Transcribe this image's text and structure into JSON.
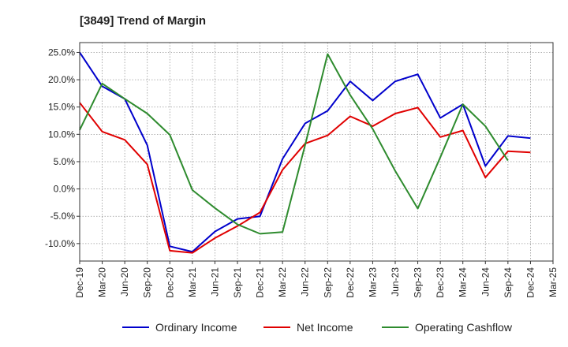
{
  "chart_data": {
    "type": "line",
    "title": "[3849]  Trend of Margin",
    "xlabel": "",
    "ylabel": "",
    "ylim": [
      -13.2,
      26.8
    ],
    "y_ticks": [
      "25.0%",
      "20.0%",
      "15.0%",
      "10.0%",
      "5.0%",
      "0.0%",
      "-5.0%",
      "-10.0%"
    ],
    "y_tick_values": [
      25,
      20,
      15,
      10,
      5,
      0,
      -5,
      -10
    ],
    "categories": [
      "Dec-19",
      "Mar-20",
      "Jun-20",
      "Sep-20",
      "Dec-20",
      "Mar-21",
      "Jun-21",
      "Sep-21",
      "Dec-21",
      "Mar-22",
      "Jun-22",
      "Sep-22",
      "Dec-22",
      "Mar-23",
      "Jun-23",
      "Sep-23",
      "Dec-23",
      "Mar-24",
      "Jun-24",
      "Sep-24",
      "Dec-24",
      "Mar-25"
    ],
    "grid": true,
    "legend_position": "bottom",
    "series": [
      {
        "name": "Ordinary Income",
        "color": "#0000cc",
        "values": [
          25.0,
          18.8,
          16.5,
          8.0,
          -10.5,
          -11.5,
          -7.8,
          -5.5,
          -5.0,
          5.5,
          12.0,
          14.3,
          19.7,
          16.2,
          19.7,
          21.0,
          13.0,
          15.5,
          4.2,
          9.7,
          9.3,
          null
        ]
      },
      {
        "name": "Net Income",
        "color": "#e00000",
        "values": [
          15.8,
          10.5,
          9.0,
          4.5,
          -11.3,
          -11.7,
          -9.0,
          -6.8,
          -4.3,
          3.5,
          8.3,
          9.8,
          13.3,
          11.5,
          13.8,
          14.9,
          9.5,
          10.7,
          2.1,
          6.9,
          6.7,
          null
        ]
      },
      {
        "name": "Operating Cashflow",
        "color": "#2e8b2e",
        "values": [
          10.8,
          19.3,
          16.5,
          13.8,
          9.9,
          -0.2,
          -3.5,
          -6.5,
          -8.2,
          -7.9,
          8.0,
          24.7,
          17.2,
          11.0,
          3.3,
          -3.6,
          5.8,
          15.5,
          11.5,
          5.2,
          null,
          null
        ]
      }
    ]
  }
}
